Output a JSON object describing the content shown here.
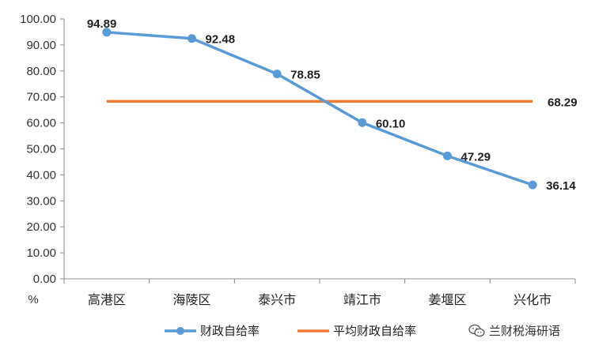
{
  "chart_data": {
    "type": "line",
    "categories": [
      "高港区",
      "海陵区",
      "泰兴市",
      "靖江市",
      "姜堰区",
      "兴化市"
    ],
    "series": [
      {
        "name": "财政自给率",
        "values": [
          94.89,
          92.48,
          78.85,
          60.1,
          47.29,
          36.14
        ],
        "color": "#5B9BD5",
        "markers": true,
        "data_labels": true
      },
      {
        "name": "平均财政自给率",
        "values": [
          68.29,
          68.29,
          68.29,
          68.29,
          68.29,
          68.29
        ],
        "color": "#ED7D31",
        "markers": false,
        "end_label": "68.29"
      }
    ],
    "data_labels": [
      "94.89",
      "92.48",
      "78.85",
      "60.10",
      "47.29",
      "36.14"
    ],
    "yticks": [
      "0.00",
      "10.00",
      "20.00",
      "30.00",
      "40.00",
      "50.00",
      "60.00",
      "70.00",
      "80.00",
      "90.00",
      "100.00"
    ],
    "ylim": [
      0,
      100
    ],
    "ylabel": "%",
    "xlabel": "",
    "title": "",
    "grid": false,
    "legend_position": "bottom"
  },
  "watermark": {
    "text": "兰财税海研语",
    "icon": "wechat-icon"
  }
}
